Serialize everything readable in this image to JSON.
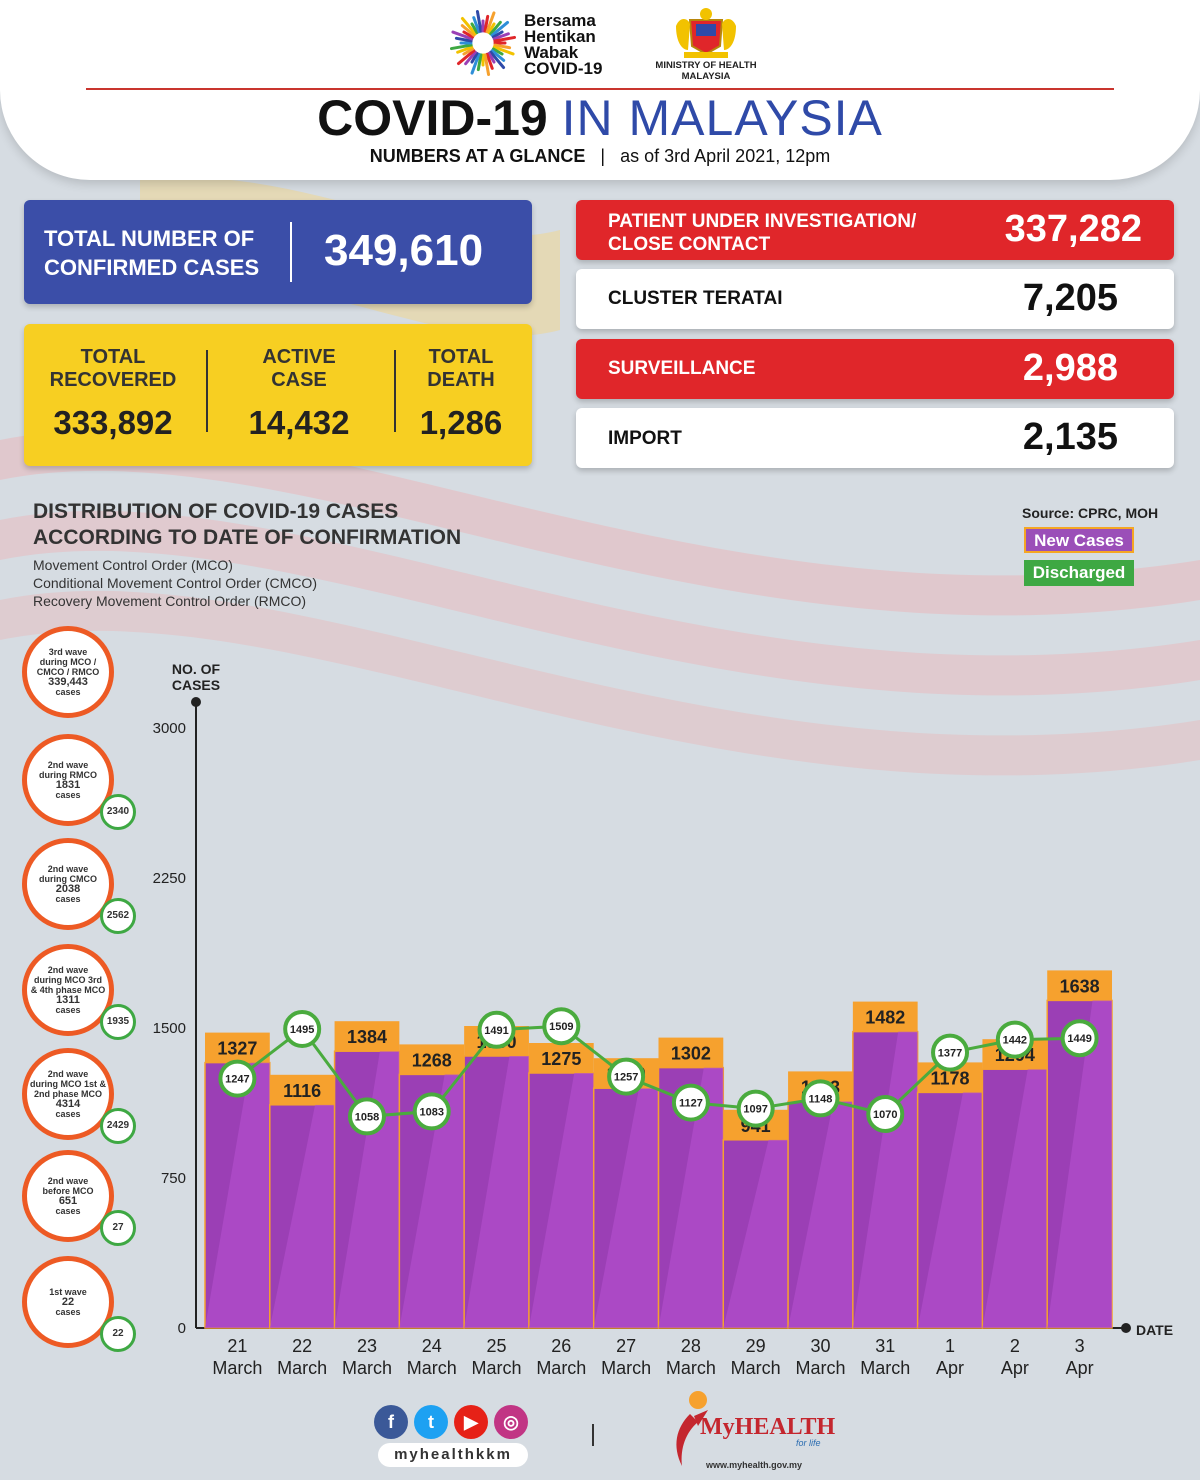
{
  "header": {
    "campaign_lines": [
      "Bersama",
      "Hentikan",
      "Wabak",
      "COVID-19"
    ],
    "ministry_line1": "MINISTRY OF HEALTH",
    "ministry_line2": "MALAYSIA",
    "title_part1": "COVID-19",
    "title_part2": "IN MALAYSIA",
    "subtitle_part1": "NUMBERS AT A GLANCE",
    "subtitle_sep": "|",
    "subtitle_part2": "as of 3rd April 2021, 12pm"
  },
  "confirmed": {
    "label_line1": "TOTAL NUMBER OF",
    "label_line2": "CONFIRMED CASES",
    "value": "349,610"
  },
  "summary": [
    {
      "label_line1": "TOTAL",
      "label_line2": "RECOVERED",
      "value": "333,892"
    },
    {
      "label_line1": "ACTIVE",
      "label_line2": "CASE",
      "value": "14,432"
    },
    {
      "label_line1": "TOTAL",
      "label_line2": "DEATH",
      "value": "1,286"
    }
  ],
  "categories": [
    {
      "label_line1": "PATIENT UNDER INVESTIGATION/",
      "label_line2": "CLOSE CONTACT",
      "value": "337,282",
      "style": "red"
    },
    {
      "label_line1": "CLUSTER TERATAI",
      "label_line2": "",
      "value": "7,205",
      "style": "white"
    },
    {
      "label_line1": "SURVEILLANCE",
      "label_line2": "",
      "value": "2,988",
      "style": "red"
    },
    {
      "label_line1": "IMPORT",
      "label_line2": "",
      "value": "2,135",
      "style": "white"
    }
  ],
  "distribution": {
    "title_line1": "DISTRIBUTION OF COVID-19 CASES",
    "title_line2": "ACCORDING TO DATE OF CONFIRMATION",
    "note1": "Movement Control Order (MCO)",
    "note2": "Conditional Movement Control Order (CMCO)",
    "note3": "Recovery Movement Control Order (RMCO)",
    "source": "Source: CPRC, MOH",
    "legend_new": "New Cases",
    "legend_discharged": "Discharged"
  },
  "waves": [
    {
      "lines": [
        "3rd wave",
        "during MCO /",
        "CMCO / RMCO"
      ],
      "number": "339,443",
      "unit": "cases",
      "badge": ""
    },
    {
      "lines": [
        "2nd wave",
        "during RMCO"
      ],
      "number": "1831",
      "unit": "cases",
      "badge": "2340"
    },
    {
      "lines": [
        "2nd wave",
        "during CMCO"
      ],
      "number": "2038",
      "unit": "cases",
      "badge": "2562"
    },
    {
      "lines": [
        "2nd wave",
        "during MCO 3rd",
        "& 4th phase MCO"
      ],
      "number": "1311",
      "unit": "cases",
      "badge": "1935"
    },
    {
      "lines": [
        "2nd wave",
        "during MCO 1st &",
        "2nd phase MCO"
      ],
      "number": "4314",
      "unit": "cases",
      "badge": "2429"
    },
    {
      "lines": [
        "2nd wave",
        "before MCO"
      ],
      "number": "651",
      "unit": "cases",
      "badge": "27"
    },
    {
      "lines": [
        "1st wave"
      ],
      "number": "22",
      "unit": "cases",
      "badge": "22"
    }
  ],
  "chart_data": {
    "type": "bar",
    "y_axis_label_line1": "NO. OF",
    "y_axis_label_line2": "CASES",
    "x_axis_label": "DATE",
    "ylim": [
      0,
      3000
    ],
    "y_ticks": [
      0,
      750,
      1500,
      2250,
      3000
    ],
    "categories": [
      {
        "day": "21",
        "month": "March"
      },
      {
        "day": "22",
        "month": "March"
      },
      {
        "day": "23",
        "month": "March"
      },
      {
        "day": "24",
        "month": "March"
      },
      {
        "day": "25",
        "month": "March"
      },
      {
        "day": "26",
        "month": "March"
      },
      {
        "day": "27",
        "month": "March"
      },
      {
        "day": "28",
        "month": "March"
      },
      {
        "day": "29",
        "month": "March"
      },
      {
        "day": "30",
        "month": "March"
      },
      {
        "day": "31",
        "month": "March"
      },
      {
        "day": "1",
        "month": "Apr"
      },
      {
        "day": "2",
        "month": "Apr"
      },
      {
        "day": "3",
        "month": "Apr"
      }
    ],
    "series": [
      {
        "name": "New Cases",
        "type": "bar",
        "color": "#9b3fb5",
        "values": [
          1327,
          1116,
          1384,
          1268,
          1360,
          1275,
          1199,
          1302,
          941,
          1133,
          1482,
          1178,
          1294,
          1638
        ]
      },
      {
        "name": "Discharged",
        "type": "line",
        "color": "#4aab3e",
        "values": [
          1247,
          1495,
          1058,
          1083,
          1491,
          1509,
          1257,
          1127,
          1097,
          1148,
          1070,
          1377,
          1442,
          1449
        ]
      }
    ],
    "colors": {
      "bar": "#9b3fb5",
      "bar_light": "#b24fcc",
      "bar_cap": "#f6a12e",
      "line": "#4aab3e",
      "bar_border": "#f6a12e"
    }
  },
  "footer": {
    "social_icons": [
      "facebook-icon",
      "twitter-icon",
      "youtube-icon",
      "instagram-icon"
    ],
    "handle": "myhealthkkm",
    "separator": "|",
    "brand": "MyHEALTH",
    "tagline": "for life",
    "url": "www.myhealth.gov.my"
  }
}
